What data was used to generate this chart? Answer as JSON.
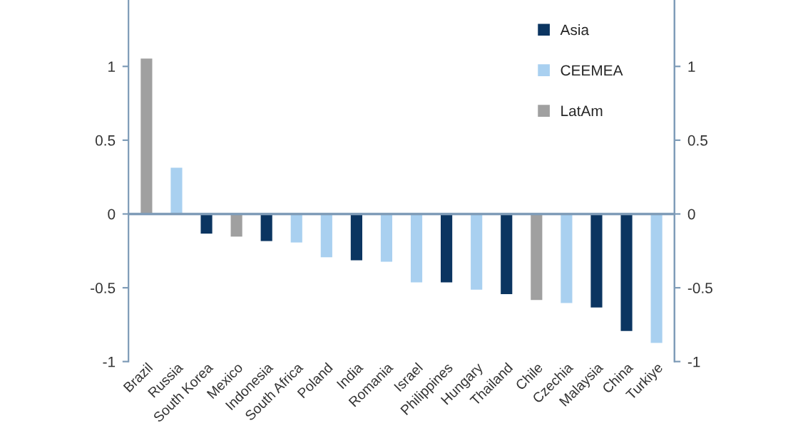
{
  "chart_data": {
    "type": "bar",
    "categories": [
      "Brazil",
      "Russia",
      "South Korea",
      "Mexico",
      "Indonesia",
      "South Africa",
      "Poland",
      "India",
      "Romania",
      "Israel",
      "Philippines",
      "Hungary",
      "Thailand",
      "Chile",
      "Czechia",
      "Malaysia",
      "China",
      "Turkiye"
    ],
    "series": [
      {
        "name": "Asia",
        "color": "#0b3561",
        "values": [
          null,
          null,
          -0.14,
          null,
          -0.19,
          null,
          null,
          -0.32,
          null,
          null,
          -0.47,
          null,
          -0.55,
          null,
          null,
          -0.64,
          -0.8,
          null
        ]
      },
      {
        "name": "CEEMEA",
        "color": "#a9d0f0",
        "values": [
          null,
          0.32,
          null,
          null,
          null,
          -0.2,
          -0.3,
          null,
          -0.33,
          -0.47,
          null,
          -0.52,
          null,
          null,
          -0.61,
          null,
          null,
          -0.88
        ]
      },
      {
        "name": "LatAm",
        "color": "#a0a0a0",
        "values": [
          1.06,
          null,
          null,
          -0.16,
          null,
          null,
          null,
          null,
          null,
          null,
          null,
          null,
          null,
          -0.59,
          null,
          null,
          null,
          null
        ]
      }
    ],
    "ylim": [
      -1,
      1.45
    ],
    "yticks": [
      -1,
      -0.5,
      0,
      0.5,
      1
    ],
    "y2lim": [
      -1,
      1.45
    ],
    "y2ticks": [
      -1,
      -0.5,
      0,
      0.5,
      1
    ],
    "ref_lines": [
      {
        "axis": "y",
        "value": 0,
        "color": "#7f9cb8"
      }
    ],
    "grid": false,
    "legend": "top right"
  }
}
